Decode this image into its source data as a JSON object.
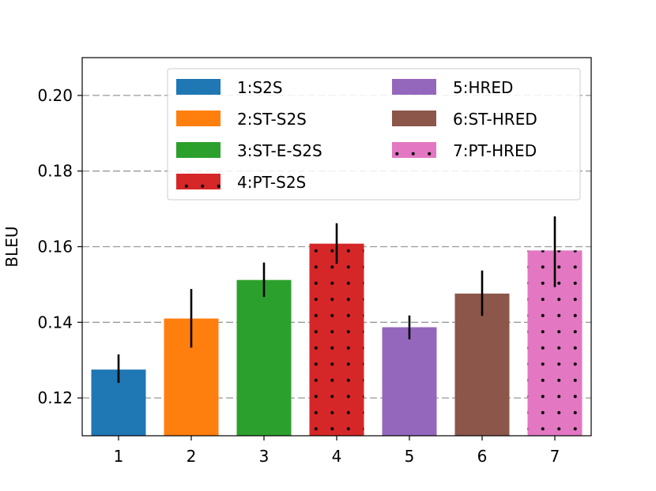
{
  "chart_data": {
    "type": "bar",
    "title": "",
    "xlabel": "",
    "ylabel": "BLEU",
    "ylim": [
      0.11,
      0.21
    ],
    "yticks": [
      0.12,
      0.14,
      0.16,
      0.18,
      0.2
    ],
    "ytick_labels": [
      "0.12",
      "0.14",
      "0.16",
      "0.18",
      "0.20"
    ],
    "grid": "horizontal dashed",
    "categories": [
      "1",
      "2",
      "3",
      "4",
      "5",
      "6",
      "7"
    ],
    "values": [
      0.1275,
      0.141,
      0.1512,
      0.1608,
      0.1387,
      0.1476,
      0.159
    ],
    "error_low": [
      0.124,
      0.1333,
      0.1467,
      0.1555,
      0.1355,
      0.1417,
      0.1493
    ],
    "error_high": [
      0.1315,
      0.1488,
      0.1558,
      0.1662,
      0.1418,
      0.1537,
      0.168
    ],
    "series_names": [
      "1:S2S",
      "2:ST-S2S",
      "3:ST-E-S2S",
      "4:PT-S2S",
      "5:HRED",
      "6:ST-HRED",
      "7:PT-HRED"
    ],
    "colors": [
      "#1f77b4",
      "#ff7f0e",
      "#2ca02c",
      "#d62728",
      "#9467bd",
      "#8c564b",
      "#e377c2"
    ],
    "hatched": [
      false,
      false,
      false,
      true,
      false,
      false,
      true
    ],
    "legend_position": "top-right"
  }
}
